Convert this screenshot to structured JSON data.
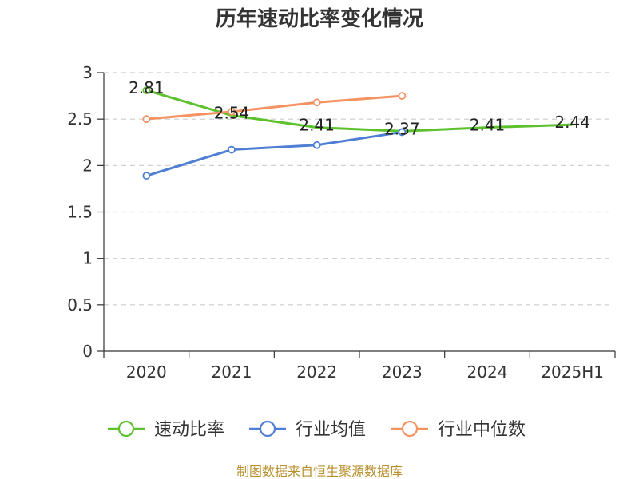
{
  "title": "历年速动比率变化情况",
  "source": "制图数据来自恒生聚源数据库",
  "chart_data": {
    "type": "line",
    "title": "历年速动比率变化情况",
    "categories": [
      "2020",
      "2021",
      "2022",
      "2023",
      "2024",
      "2025H1"
    ],
    "ylim": [
      0,
      3
    ],
    "yticks": [
      "0",
      "0.5",
      "1",
      "1.5",
      "2",
      "2.5",
      "3"
    ],
    "grid": true,
    "legend_position": "bottom",
    "series": [
      {
        "name": "速动比率",
        "color": "#5cc12c",
        "values": [
          2.81,
          2.54,
          2.41,
          2.37,
          2.41,
          2.44
        ],
        "labels": [
          "2.81",
          "2.54",
          "2.41",
          "2.37",
          "2.41",
          "2.44"
        ],
        "markers": [
          true,
          false,
          false,
          false,
          false,
          false
        ]
      },
      {
        "name": "行业均值",
        "color": "#4f7fd4",
        "values": [
          1.89,
          2.17,
          2.22,
          2.36,
          null,
          null
        ],
        "markers": [
          true,
          true,
          true,
          true,
          false,
          false
        ]
      },
      {
        "name": "行业中位数",
        "color": "#f59262",
        "values": [
          2.5,
          2.58,
          2.68,
          2.75,
          null,
          null
        ],
        "markers": [
          true,
          true,
          true,
          true,
          false,
          false
        ]
      }
    ]
  }
}
